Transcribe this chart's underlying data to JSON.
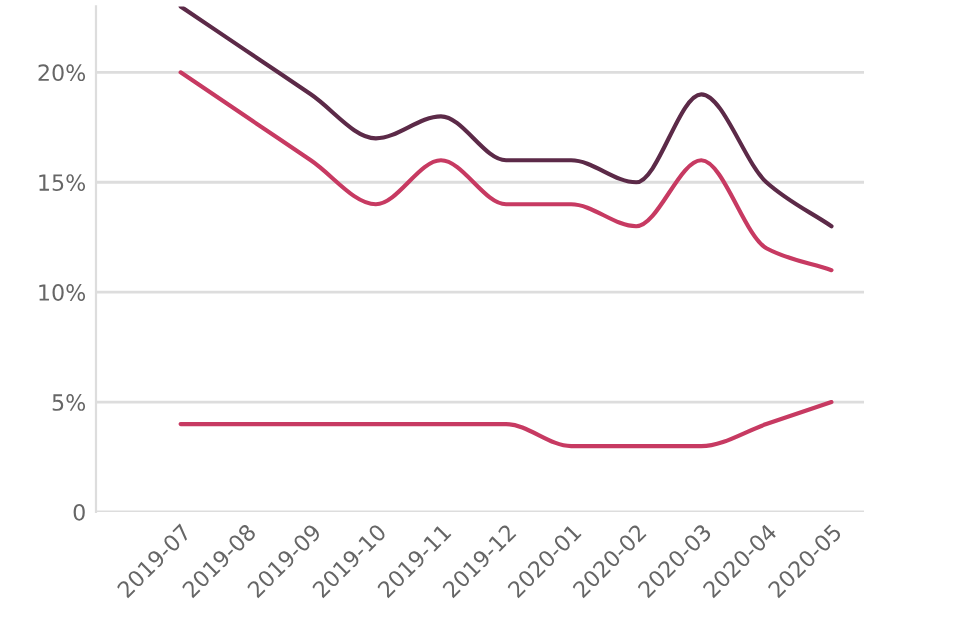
{
  "chart_data": {
    "type": "line",
    "categories": [
      "2019-07",
      "2019-08",
      "2019-09",
      "2019-10",
      "2019-11",
      "2019-12",
      "2020-01",
      "2020-02",
      "2020-03",
      "2020-04",
      "2020-05"
    ],
    "series": [
      {
        "color": "#5c2a48",
        "values": [
          23,
          21,
          19,
          17,
          18,
          16,
          16,
          15,
          19,
          15,
          13
        ]
      },
      {
        "color": "#c73a62",
        "values": [
          20,
          18,
          16,
          14,
          16,
          14,
          14,
          13,
          16,
          12,
          11
        ]
      },
      {
        "color": "#c73a62",
        "values": [
          4,
          4,
          4,
          4,
          4,
          4,
          3,
          3,
          3,
          4,
          5
        ]
      }
    ],
    "ylim": [
      0,
      23
    ],
    "yticks": [
      {
        "value": 0,
        "label": "0"
      },
      {
        "value": 5,
        "label": "5%"
      },
      {
        "value": 10,
        "label": "10%"
      },
      {
        "value": 15,
        "label": "15%"
      },
      {
        "value": 20,
        "label": "20%"
      }
    ],
    "grid": "y",
    "legend": false,
    "marker": "none",
    "line_style": "solid"
  }
}
